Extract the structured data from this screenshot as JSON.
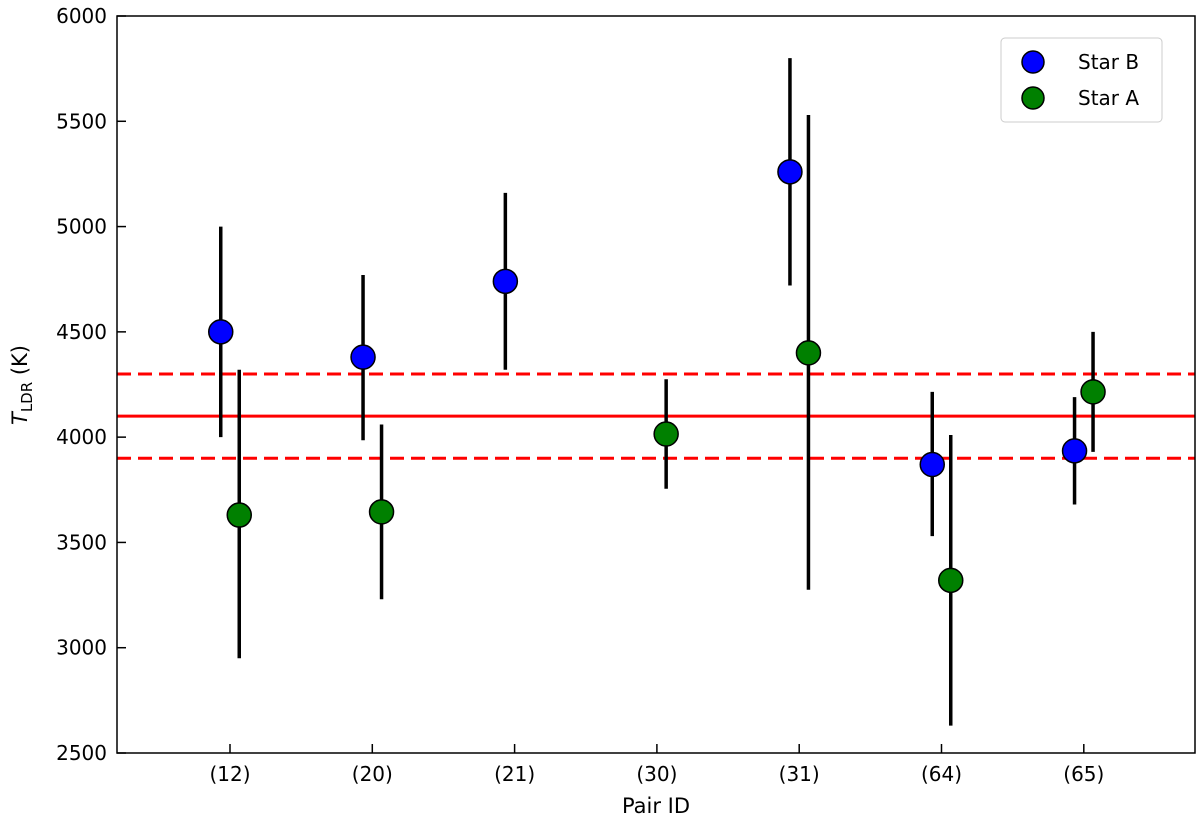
{
  "chart_data": {
    "type": "scatter",
    "xlabel": "Pair ID",
    "ylabel_main": "T",
    "ylabel_sub": "LDR",
    "ylabel_unit": " (K)",
    "categories": [
      "(12)",
      "(20)",
      "(21)",
      "(30)",
      "(31)",
      "(64)",
      "(65)"
    ],
    "ylim": [
      2500,
      6000
    ],
    "yticks": [
      2500,
      3000,
      3500,
      4000,
      4500,
      5000,
      5500,
      6000
    ],
    "grid": false,
    "legend_position": "top-right",
    "reference_lines": [
      {
        "y": 4100,
        "style": "solid",
        "color": "#ff0000"
      },
      {
        "y": 4300,
        "style": "dashed",
        "color": "#ff0000"
      },
      {
        "y": 3900,
        "style": "dashed",
        "color": "#ff0000"
      }
    ],
    "series": [
      {
        "name": "Star B",
        "color": "#0000ff",
        "offset": -0.05,
        "points": [
          {
            "category": "(12)",
            "y": 4500,
            "err_low": 4000,
            "err_high": 5000
          },
          {
            "category": "(20)",
            "y": 4380,
            "err_low": 3985,
            "err_high": 4770
          },
          {
            "category": "(21)",
            "y": 4740,
            "err_low": 4320,
            "err_high": 5160
          },
          {
            "category": "(31)",
            "y": 5260,
            "err_low": 4720,
            "err_high": 5800
          },
          {
            "category": "(64)",
            "y": 3870,
            "err_low": 3530,
            "err_high": 4215
          },
          {
            "category": "(65)",
            "y": 3935,
            "err_low": 3680,
            "err_high": 4190
          }
        ]
      },
      {
        "name": "Star A",
        "color": "#008000",
        "offset": 0.05,
        "points": [
          {
            "category": "(12)",
            "y": 3630,
            "err_low": 2950,
            "err_high": 4320
          },
          {
            "category": "(20)",
            "y": 3645,
            "err_low": 3230,
            "err_high": 4060
          },
          {
            "category": "(30)",
            "y": 4015,
            "err_low": 3755,
            "err_high": 4275
          },
          {
            "category": "(31)",
            "y": 4400,
            "err_low": 3275,
            "err_high": 5530
          },
          {
            "category": "(64)",
            "y": 3320,
            "err_low": 2630,
            "err_high": 4010
          },
          {
            "category": "(65)",
            "y": 4215,
            "err_low": 3930,
            "err_high": 4500
          }
        ]
      }
    ]
  }
}
